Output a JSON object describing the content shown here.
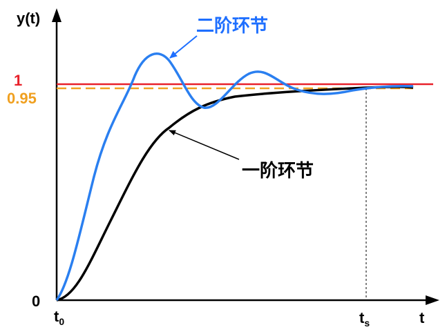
{
  "y_axis_label": "y(t)",
  "x_axis_label": "t",
  "level_one": "1",
  "level_095": "0.95",
  "origin": "0",
  "t0": {
    "main": "t",
    "sub": "0"
  },
  "ts": {
    "main": "t",
    "sub": "s"
  },
  "second_order_label": "二阶环节",
  "first_order_label": "一阶环节"
}
